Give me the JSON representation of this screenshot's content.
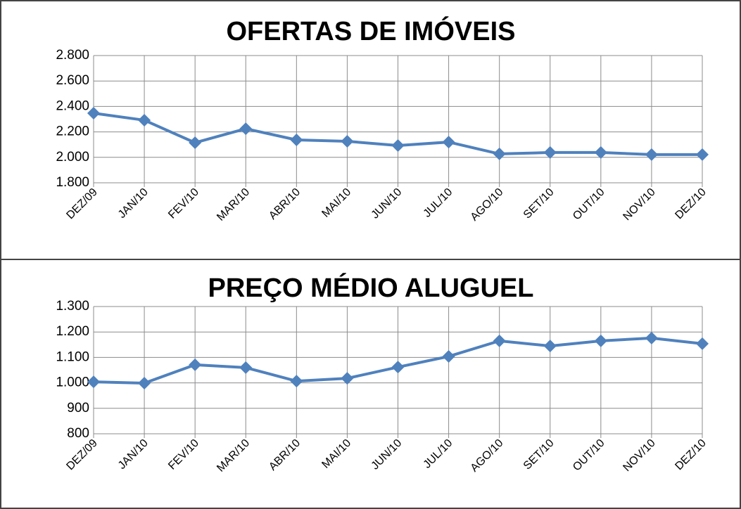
{
  "chart_data": [
    {
      "type": "line",
      "title": "OFERTAS DE IMÓVEIS",
      "categories": [
        "DEZ/09",
        "JAN/10",
        "FEV/10",
        "MAR/10",
        "ABR/10",
        "MAI/10",
        "JUN/10",
        "JUL/10",
        "AGO/10",
        "SET/10",
        "OUT/10",
        "NOV/10",
        "DEZ/10"
      ],
      "series": [
        {
          "color": "#4f81bd",
          "values": [
            2347,
            2292,
            2115,
            2225,
            2137,
            2126,
            2093,
            2120,
            2027,
            2038,
            2038,
            2022,
            2022
          ]
        }
      ],
      "ylim": [
        1800,
        2800
      ],
      "yticks": [
        {
          "value": 1800,
          "label": "1.800"
        },
        {
          "value": 2000,
          "label": "2.000"
        },
        {
          "value": 2200,
          "label": "2.200"
        },
        {
          "value": 2400,
          "label": "2.400"
        },
        {
          "value": 2600,
          "label": "2.600"
        },
        {
          "value": 2800,
          "label": "2.800"
        }
      ],
      "grid": true
    },
    {
      "type": "line",
      "title": "PREÇO MÉDIO ALUGUEL",
      "categories": [
        "DEZ/09",
        "JAN/10",
        "FEV/10",
        "MAR/10",
        "ABR/10",
        "MAI/10",
        "JUN/10",
        "JUL/10",
        "AGO/10",
        "SET/10",
        "OUT/10",
        "NOV/10",
        "DEZ/10"
      ],
      "series": [
        {
          "color": "#4f81bd",
          "values": [
            1004,
            999,
            1071,
            1060,
            1007,
            1018,
            1062,
            1104,
            1165,
            1145,
            1165,
            1176,
            1154
          ]
        }
      ],
      "ylim": [
        800,
        1300
      ],
      "yticks": [
        800,
        900,
        {
          "value": 1000,
          "label": "1.000"
        },
        {
          "value": 1100,
          "label": "1.100"
        },
        {
          "value": 1200,
          "label": "1.200"
        },
        {
          "value": 1300,
          "label": "1.300"
        }
      ],
      "grid": true
    }
  ]
}
